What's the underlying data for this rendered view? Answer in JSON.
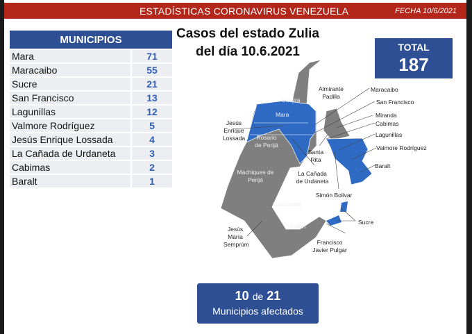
{
  "header": {
    "title": "ESTADÍSTICAS CORONAVIRUS VENEZUELA",
    "date": "FECHA 10/6/2021"
  },
  "table": {
    "header": "MUNICIPIOS",
    "rows": [
      {
        "name": "Mara",
        "value": "71"
      },
      {
        "name": "Maracaibo",
        "value": "55"
      },
      {
        "name": "Sucre",
        "value": "21"
      },
      {
        "name": "San Francisco",
        "value": "13"
      },
      {
        "name": "Lagunillas",
        "value": "12"
      },
      {
        "name": "Valmore Rodríguez",
        "value": "5"
      },
      {
        "name": "Jesús Enrique Lossada",
        "value": "4"
      },
      {
        "name": "La Cañada de Urdaneta",
        "value": "3"
      },
      {
        "name": "Cabimas",
        "value": "2"
      },
      {
        "name": "Baralt",
        "value": "1"
      }
    ]
  },
  "title": {
    "line1": "Casos del estado Zulia",
    "line2": "del día 10.6.2021"
  },
  "total": {
    "label": "TOTAL",
    "value": "187"
  },
  "map": {
    "labels": {
      "guajira": "Guajira",
      "almirante": "Almirante Padilla",
      "mara": "Mara",
      "maracaibo": "Maracaibo",
      "san_francisco": "San Francisco",
      "miranda": "Miranda",
      "cabimas": "Cabimas",
      "lagunillas": "Lagunillas",
      "valmore": "Valmore Rodríguez",
      "baralt": "Baralt",
      "lossada": "Jesús Enrique Lossada",
      "rosario": "Rosario de Perijá",
      "santa_rita": "Santa Rita",
      "canada": "La Cañada de Urdaneta",
      "machiques": "Machiques de Perijá",
      "simon": "Simón Bolivar",
      "catatumbo": "Catatumbo",
      "sucre": "Sucre",
      "colon": "Colón",
      "semprum": "Jesús María Semprúm",
      "pulgar": "Francisco Javier Pulgar"
    },
    "colors": {
      "affected": "#2f6bc4",
      "unaffected": "#7f7f7f"
    }
  },
  "affected": {
    "count": "10",
    "of": "de",
    "total": "21",
    "label": "Municipios afectados"
  }
}
